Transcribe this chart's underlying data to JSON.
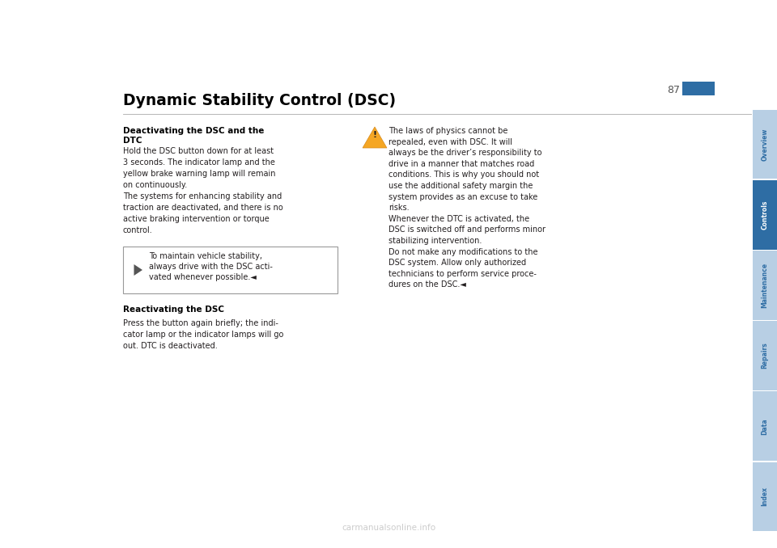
{
  "page_number": "87",
  "page_title": "Dynamic Stability Control (DSC)",
  "bg_color": "#ffffff",
  "sidebar_color": "#2e6da4",
  "sidebar_inactive_color": "#b8cfe4",
  "sidebar_tabs": [
    "Overview",
    "Controls",
    "Maintenance",
    "Repairs",
    "Data",
    "Index"
  ],
  "sidebar_active": "Controls",
  "section1_heading": "Deactivating the DSC and the\nDTC",
  "section1_body": "Hold the DSC button down for at least\n3 seconds. The indicator lamp and the\nyellow brake warning lamp will remain\non continuously.\nThe systems for enhancing stability and\ntraction are deactivated, and there is no\nactive braking intervention or torque\ncontrol.",
  "section1_note": "To maintain vehicle stability,\nalways drive with the DSC acti-\nvated whenever possible.◄",
  "section2_heading": "Reactivating the DSC",
  "section2_body": "Press the button again briefly; the indi-\ncator lamp or the indicator lamps will go\nout. DTC is deactivated.",
  "warning_text": "The laws of physics cannot be\nrepealed, even with DSC. It will\nalways be the driver’s responsibility to\ndrive in a manner that matches road\nconditions. This is why you should not\nuse the additional safety margin the\nsystem provides as an excuse to take\nrisks.\nWhenever the DTC is activated, the\nDSC is switched off and performs minor\nstabilizing intervention.\nDo not make any modifications to the\nDSC system. Allow only authorized\ntechnicians to perform service proce-\ndures on the DSC.◄",
  "text_color": "#231f20",
  "heading_color": "#000000",
  "title_color": "#000000",
  "watermark_text": "carmanualsonline.info",
  "page_bg": "#ffffff"
}
